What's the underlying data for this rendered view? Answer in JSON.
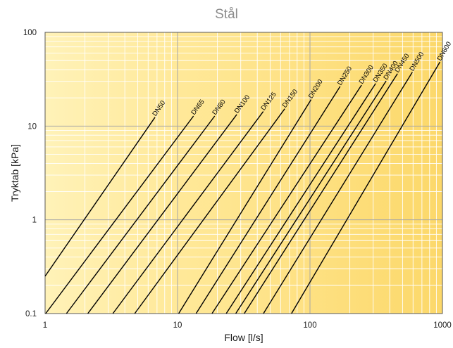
{
  "chart_data": {
    "type": "line",
    "title": "Stål",
    "xlabel": "Flow [l/s]",
    "ylabel": "Tryktab [kPa]",
    "xscale": "log",
    "yscale": "log",
    "xlim": [
      1,
      1000
    ],
    "ylim": [
      0.1,
      100
    ],
    "x_ticks": [
      "1",
      "10",
      "100",
      "1000"
    ],
    "y_ticks": [
      "0.1",
      "1",
      "10",
      "100"
    ],
    "grid": true,
    "legend": "none",
    "colors": {
      "line": "#000000",
      "grid_major": "#a6a6a6",
      "grid_minor": "#ffffff",
      "background_left": "#fff2b8",
      "background_right": "#fcd86a"
    },
    "series": [
      {
        "name": "DN50",
        "x": [
          1,
          6.76
        ],
        "y": [
          0.25,
          12.42
        ]
      },
      {
        "name": "DN65",
        "x": [
          1.01,
          13.2
        ],
        "y": [
          0.1,
          12.8
        ]
      },
      {
        "name": "DN80",
        "x": [
          1.45,
          19.1
        ],
        "y": [
          0.1,
          12.8
        ]
      },
      {
        "name": "DN100",
        "x": [
          2.1,
          28
        ],
        "y": [
          0.1,
          13.3
        ]
      },
      {
        "name": "DN125",
        "x": [
          3.25,
          44.4
        ],
        "y": [
          0.1,
          14.3
        ]
      },
      {
        "name": "DN150",
        "x": [
          4.75,
          64.5
        ],
        "y": [
          0.1,
          15.3
        ]
      },
      {
        "name": "DN200",
        "x": [
          10.2,
          102
        ],
        "y": [
          0.1,
          19.2
        ]
      },
      {
        "name": "DN250",
        "x": [
          13.8,
          169
        ],
        "y": [
          0.1,
          26.5
        ]
      },
      {
        "name": "DN300",
        "x": [
          18.2,
          245
        ],
        "y": [
          0.1,
          27.4
        ]
      },
      {
        "name": "DN350",
        "x": [
          23.3,
          313
        ],
        "y": [
          0.1,
          28.5
        ]
      },
      {
        "name": "DN400",
        "x": [
          27.5,
          376
        ],
        "y": [
          0.1,
          30.3
        ]
      },
      {
        "name": "DN450",
        "x": [
          31.9,
          458
        ],
        "y": [
          0.1,
          36.3
        ]
      },
      {
        "name": "DN500",
        "x": [
          44.5,
          593
        ],
        "y": [
          0.1,
          37.6
        ]
      },
      {
        "name": "DN600",
        "x": [
          72.5,
          958
        ],
        "y": [
          0.1,
          48.3
        ]
      }
    ]
  }
}
